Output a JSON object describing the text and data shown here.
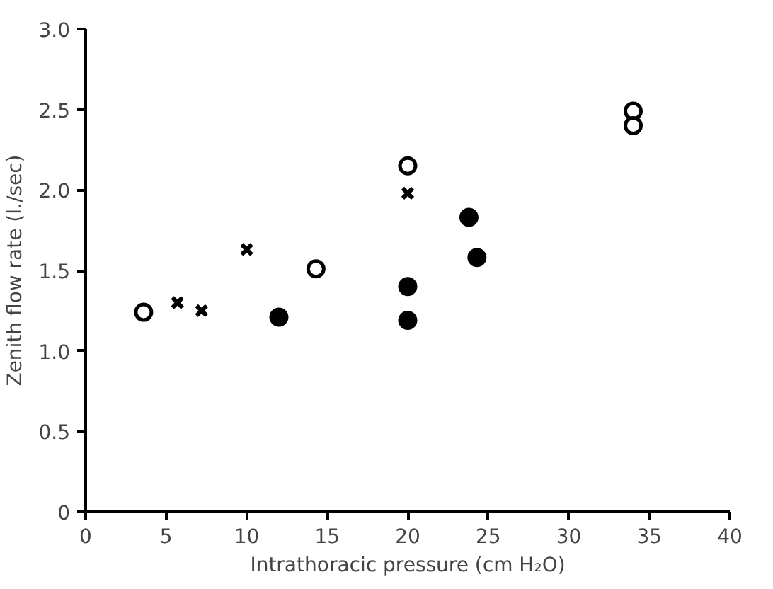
{
  "chart_data": {
    "type": "scatter",
    "xlabel": "Intrathoracic pressure (cm H₂O)",
    "ylabel": "Zenith flow rate (l./sec)",
    "xlim": [
      0,
      40
    ],
    "xticks": [
      0,
      5,
      10,
      15,
      20,
      25,
      30,
      35,
      40
    ],
    "ylim": [
      0,
      3.0
    ],
    "yticks": [
      0,
      0.5,
      {
        "value": 1,
        "label": "1.0"
      },
      1.5,
      {
        "value": 2,
        "label": "2.0"
      },
      2.5,
      {
        "value": 3,
        "label": "3.0"
      }
    ],
    "grid": false,
    "series": [
      {
        "color": "#000000",
        "marker": "circle_open",
        "x": [
          3.6,
          14.3,
          20.0,
          34.0,
          34.0
        ],
        "values": [
          1.24,
          1.51,
          2.15,
          2.49,
          2.4
        ]
      },
      {
        "color": "#000000",
        "marker": "cross",
        "x": [
          5.7,
          7.2,
          10.0,
          20.0
        ],
        "values": [
          1.3,
          1.25,
          1.63,
          1.98
        ]
      },
      {
        "color": "#000000",
        "marker": "circle",
        "x": [
          12.0,
          20.0,
          20.0,
          23.8,
          24.3
        ],
        "values": [
          1.21,
          1.4,
          1.19,
          1.83,
          1.58
        ]
      }
    ]
  }
}
